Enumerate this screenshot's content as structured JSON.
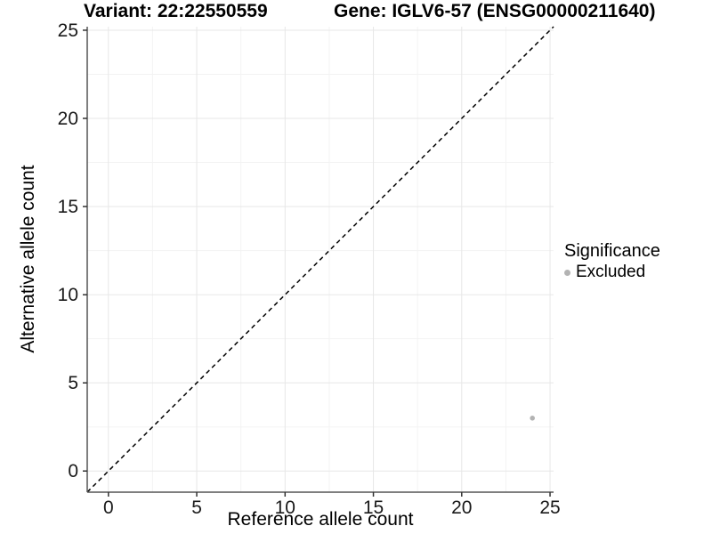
{
  "titles": {
    "variant": "Variant: 22:22550559",
    "gene": "Gene: IGLV6-57 (ENSG00000211640)"
  },
  "axes": {
    "x_label": "Reference allele count",
    "y_label": "Alternative allele count"
  },
  "legend": {
    "title": "Significance",
    "items": [
      {
        "label": "Excluded",
        "color": "#b3b3b3"
      }
    ]
  },
  "chart_data": {
    "type": "scatter",
    "title": "Variant: 22:22550559 | Gene: IGLV6-57 (ENSG00000211640)",
    "xlabel": "Reference allele count",
    "ylabel": "Alternative allele count",
    "xlim": [
      -1.2,
      25.2
    ],
    "ylim": [
      -1.2,
      25.2
    ],
    "x_ticks": [
      0,
      5,
      10,
      15,
      20,
      25
    ],
    "y_ticks": [
      0,
      5,
      10,
      15,
      20,
      25
    ],
    "x_minor": [
      2.5,
      7.5,
      12.5,
      17.5,
      22.5
    ],
    "y_minor": [
      2.5,
      7.5,
      12.5,
      17.5,
      22.5
    ],
    "grid": true,
    "legend_position": "right",
    "series": [
      {
        "name": "Excluded",
        "color": "#b3b3b3",
        "points": [
          {
            "x": 24,
            "y": 3
          }
        ]
      }
    ],
    "reference_line": {
      "type": "identity",
      "style": "dashed",
      "color": "#000000"
    },
    "colors": {
      "grid_major": "#e7e7e7",
      "grid_minor": "#f3f3f3",
      "axis_line": "#555555",
      "tick_mark": "#333333",
      "point": "#b3b3b3"
    }
  }
}
